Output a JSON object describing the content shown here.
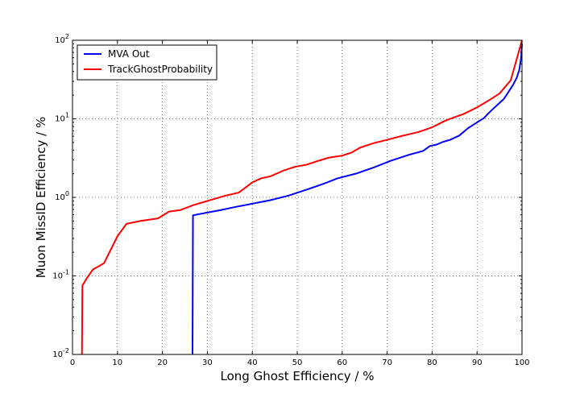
{
  "chart_data": {
    "type": "line",
    "xlabel": "Long Ghost Efficiency / %",
    "ylabel": "Muon MissID Efficiency / %",
    "xlim": [
      0,
      100
    ],
    "ylim": [
      0.01,
      100
    ],
    "yscale": "log",
    "grid": true,
    "legend_position": "top-left",
    "x_ticks": [
      "0",
      "10",
      "20",
      "30",
      "40",
      "50",
      "60",
      "70",
      "80",
      "90",
      "100"
    ],
    "y_ticks": [
      {
        "base": "10",
        "exp": "-2"
      },
      {
        "base": "10",
        "exp": "-1"
      },
      {
        "base": "10",
        "exp": "0"
      },
      {
        "base": "10",
        "exp": "1"
      },
      {
        "base": "10",
        "exp": "2"
      }
    ],
    "series": [
      {
        "name": "MVA Out",
        "color": "#0000ff",
        "points": [
          [
            26.7,
            0.01
          ],
          [
            26.8,
            0.59
          ],
          [
            28,
            0.61
          ],
          [
            30,
            0.64
          ],
          [
            33,
            0.69
          ],
          [
            36,
            0.75
          ],
          [
            40,
            0.83
          ],
          [
            44,
            0.92
          ],
          [
            48,
            1.05
          ],
          [
            52,
            1.25
          ],
          [
            56,
            1.5
          ],
          [
            59,
            1.75
          ],
          [
            63,
            2.0
          ],
          [
            67,
            2.4
          ],
          [
            71,
            2.95
          ],
          [
            75,
            3.5
          ],
          [
            78,
            3.9
          ],
          [
            79.5,
            4.5
          ],
          [
            81,
            4.7
          ],
          [
            82.5,
            5.1
          ],
          [
            84,
            5.4
          ],
          [
            86,
            6.1
          ],
          [
            88,
            7.6
          ],
          [
            90,
            9.0
          ],
          [
            91.5,
            10.2
          ],
          [
            93,
            12.5
          ],
          [
            94.5,
            15
          ],
          [
            96,
            18
          ],
          [
            97,
            22
          ],
          [
            98,
            27
          ],
          [
            98.8,
            33
          ],
          [
            99.4,
            42
          ],
          [
            99.8,
            60
          ],
          [
            100,
            90
          ]
        ]
      },
      {
        "name": "TrackGhostProbability",
        "color": "#ff0000",
        "points": [
          [
            2.1,
            0.01
          ],
          [
            2.2,
            0.075
          ],
          [
            3,
            0.09
          ],
          [
            4.5,
            0.12
          ],
          [
            7,
            0.145
          ],
          [
            10,
            0.32
          ],
          [
            12,
            0.46
          ],
          [
            15,
            0.5
          ],
          [
            19,
            0.54
          ],
          [
            21.5,
            0.66
          ],
          [
            24,
            0.69
          ],
          [
            27,
            0.8
          ],
          [
            30,
            0.9
          ],
          [
            34,
            1.05
          ],
          [
            37,
            1.15
          ],
          [
            40,
            1.55
          ],
          [
            42,
            1.75
          ],
          [
            44,
            1.85
          ],
          [
            47,
            2.2
          ],
          [
            49.5,
            2.45
          ],
          [
            52,
            2.6
          ],
          [
            54.5,
            2.9
          ],
          [
            57,
            3.2
          ],
          [
            60,
            3.4
          ],
          [
            62,
            3.7
          ],
          [
            64,
            4.3
          ],
          [
            67,
            4.9
          ],
          [
            70,
            5.4
          ],
          [
            73,
            6.0
          ],
          [
            77,
            6.8
          ],
          [
            80,
            7.8
          ],
          [
            83,
            9.5
          ],
          [
            85,
            10.5
          ],
          [
            87,
            11.5
          ],
          [
            90,
            14
          ],
          [
            92.5,
            17
          ],
          [
            95,
            21
          ],
          [
            97.5,
            31
          ],
          [
            100,
            100
          ]
        ]
      }
    ]
  }
}
